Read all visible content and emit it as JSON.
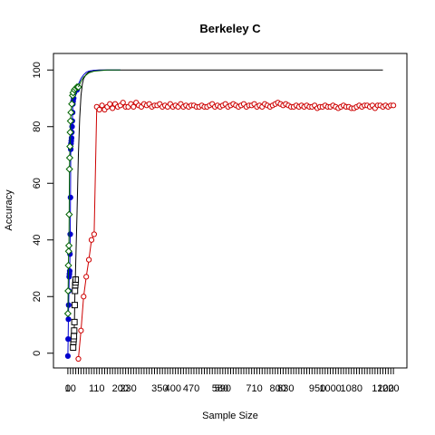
{
  "chart_data": {
    "type": "line",
    "title": "Berkeley C",
    "xlabel": "Sample Size",
    "ylabel": "Accuracy",
    "xlim": [
      -10,
      1250
    ],
    "ylim": [
      -2,
      102
    ],
    "grid": false,
    "y_ticks": [
      0,
      20,
      40,
      60,
      80,
      100
    ],
    "x_tick_labels": [
      "0",
      "10",
      "110",
      "200",
      "230",
      "350",
      "400",
      "470",
      "580",
      "590",
      "710",
      "800",
      "830",
      "950",
      "1000",
      "1080",
      "1200",
      "1220"
    ],
    "colors": {
      "black": "#000000",
      "blue": "#0000cd",
      "green": "#006400",
      "red": "#cd0000"
    },
    "series": [
      {
        "color": "black",
        "marker": "square",
        "x": [
          20,
          21,
          22,
          23,
          24,
          25,
          26,
          27,
          28,
          29,
          30
        ],
        "y": [
          2,
          4,
          5,
          6,
          8,
          11,
          17,
          22,
          24,
          25,
          26
        ]
      },
      {
        "color": "black",
        "marker": "none",
        "x": [
          28,
          35,
          40,
          45,
          50,
          55,
          60,
          70,
          80,
          90,
          100,
          120,
          150,
          200,
          300,
          400,
          600,
          800,
          1000,
          1200
        ],
        "y": [
          25,
          50,
          70,
          83,
          91,
          95,
          97,
          98.5,
          99.3,
          99.7,
          99.9,
          100,
          100,
          100,
          100,
          100,
          100,
          100,
          100,
          100
        ]
      },
      {
        "color": "blue",
        "marker": "filled-circle",
        "x": [
          0,
          1,
          2,
          3,
          4,
          5,
          6,
          7,
          8,
          9,
          10,
          11,
          12,
          13,
          14,
          15,
          16,
          17,
          18,
          19,
          20,
          22,
          25,
          30,
          35
        ],
        "y": [
          -1,
          5,
          12,
          17,
          22,
          27,
          28,
          29,
          35,
          42,
          55,
          72,
          74,
          75,
          76,
          78,
          80,
          82,
          85,
          88,
          89,
          90,
          92,
          93,
          93
        ]
      },
      {
        "color": "blue",
        "marker": "none",
        "x": [
          35,
          40,
          50,
          60,
          70,
          80,
          100,
          150,
          200
        ],
        "y": [
          93,
          95,
          97,
          98.3,
          99.2,
          99.6,
          99.9,
          100,
          100
        ]
      },
      {
        "color": "green",
        "marker": "open-diamond",
        "x": [
          0,
          1,
          2,
          3,
          4,
          5,
          6,
          7,
          8,
          9,
          10,
          12,
          15,
          18,
          20,
          25,
          30,
          35,
          40
        ],
        "y": [
          14,
          22,
          31,
          36,
          38,
          49,
          65,
          69,
          73,
          78,
          82,
          85,
          88,
          91,
          92,
          93,
          93.5,
          94,
          94
        ]
      },
      {
        "color": "green",
        "marker": "none",
        "x": [
          40,
          50,
          60,
          80,
          100,
          150,
          200
        ],
        "y": [
          94,
          96,
          97.5,
          99,
          99.6,
          100,
          100
        ]
      },
      {
        "color": "red",
        "marker": "open-circle",
        "x": [
          40,
          50,
          60,
          70,
          80,
          90,
          100,
          110,
          120,
          130,
          140,
          150,
          160,
          170,
          180,
          190,
          200,
          210,
          220,
          230,
          240,
          250,
          260,
          270,
          280,
          290,
          300,
          310,
          320,
          330,
          340,
          350,
          360,
          370,
          380,
          390,
          400,
          410,
          420,
          430,
          440,
          450,
          460,
          470,
          480,
          490,
          500,
          510,
          520,
          530,
          540,
          550,
          560,
          570,
          580,
          590,
          600,
          610,
          620,
          630,
          640,
          650,
          660,
          670,
          680,
          690,
          700,
          710,
          720,
          730,
          740,
          750,
          760,
          770,
          780,
          790,
          800,
          810,
          820,
          830,
          840,
          850,
          860,
          870,
          880,
          890,
          900,
          910,
          920,
          930,
          940,
          950,
          960,
          970,
          980,
          990,
          1000,
          1010,
          1020,
          1030,
          1040,
          1050,
          1060,
          1070,
          1080,
          1090,
          1100,
          1110,
          1120,
          1130,
          1140,
          1150,
          1160,
          1170,
          1180,
          1190,
          1200,
          1210,
          1220,
          1230,
          1240
        ],
        "y": [
          -2,
          8,
          20,
          27,
          33,
          40,
          42,
          87,
          86,
          87.5,
          86,
          87,
          88,
          86.5,
          88,
          87,
          87.5,
          88.5,
          87,
          87,
          88,
          87,
          88.5,
          87.5,
          87,
          88,
          87.5,
          88,
          87,
          87.5,
          87.5,
          88,
          87,
          87.5,
          87,
          88,
          87,
          87.5,
          87,
          88,
          87,
          87.5,
          87,
          87.5,
          87.5,
          87,
          87,
          87.5,
          87,
          87,
          87.5,
          88,
          87,
          87.5,
          87,
          87.5,
          88,
          87,
          87.5,
          88,
          87.5,
          87,
          87.5,
          88,
          87,
          87.5,
          87.5,
          88,
          87,
          87.5,
          87,
          88,
          87.5,
          87,
          87.5,
          88,
          88.5,
          88,
          87.5,
          88,
          87.5,
          87,
          87,
          87.5,
          87,
          87.5,
          87,
          87.5,
          87,
          87,
          87.5,
          86.5,
          87,
          87,
          87.5,
          87,
          87,
          87.5,
          87,
          86.5,
          87,
          87.5,
          87,
          87,
          86.5,
          86.5,
          87,
          87.5,
          87,
          87.5,
          87.5,
          87,
          87.5,
          86.5,
          87.5,
          87.5,
          87,
          87.5,
          87,
          87.5,
          87.5
        ]
      }
    ]
  }
}
